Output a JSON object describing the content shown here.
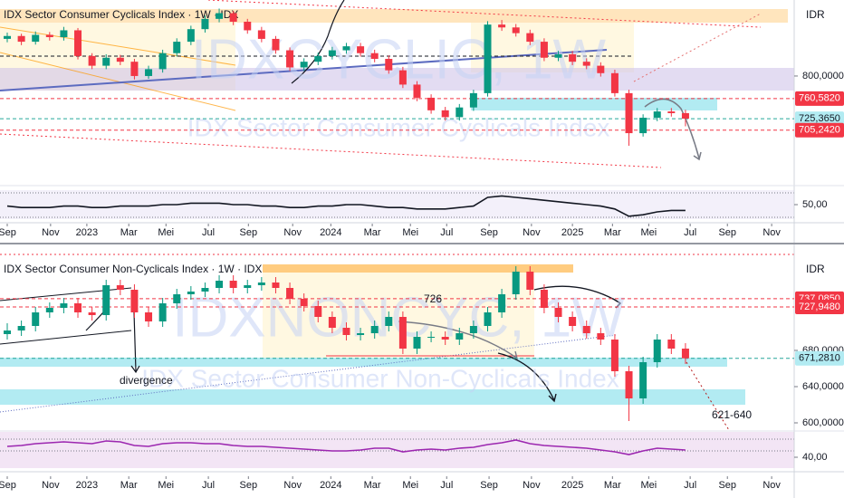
{
  "chart_data": [
    {
      "type": "candlestick",
      "title": "IDX Sector Consumer Cyclicals Index · 1W · IDX",
      "watermark": "IDXCYCLIC, 1W",
      "watermark_subtitle": "IDX Sector Consumer Cyclicals Index",
      "currency": "IDR",
      "up_color": "#089981",
      "down_color": "#f23645",
      "x": [
        0,
        3,
        6,
        9,
        12,
        15,
        18,
        21,
        24,
        27,
        30,
        33,
        36,
        39,
        42,
        45,
        48,
        51,
        54,
        57,
        60,
        63,
        66,
        69,
        72,
        75,
        78,
        81,
        84,
        87,
        90,
        93,
        96,
        99,
        102,
        105,
        108,
        111,
        114,
        117,
        120,
        123,
        126,
        129,
        132,
        135,
        138,
        141,
        144
      ],
      "ohlc": [
        [
          865,
          876,
          859,
          870
        ],
        [
          870,
          874,
          854,
          860
        ],
        [
          860,
          878,
          855,
          872
        ],
        [
          872,
          877,
          862,
          868
        ],
        [
          868,
          886,
          862,
          880
        ],
        [
          880,
          884,
          829,
          835
        ],
        [
          835,
          840,
          812,
          818
        ],
        [
          818,
          838,
          812,
          832
        ],
        [
          832,
          837,
          819,
          825
        ],
        [
          825,
          830,
          794,
          800
        ],
        [
          800,
          818,
          795,
          812
        ],
        [
          812,
          846,
          806,
          840
        ],
        [
          840,
          866,
          834,
          860
        ],
        [
          860,
          888,
          854,
          882
        ],
        [
          882,
          906,
          876,
          900
        ],
        [
          900,
          918,
          894,
          910
        ],
        [
          910,
          914,
          889,
          895
        ],
        [
          895,
          900,
          874,
          880
        ],
        [
          880,
          886,
          859,
          865
        ],
        [
          865,
          870,
          839,
          845
        ],
        [
          845,
          850,
          809,
          815
        ],
        [
          815,
          831,
          809,
          825
        ],
        [
          825,
          841,
          819,
          835
        ],
        [
          835,
          851,
          829,
          845
        ],
        [
          845,
          858,
          839,
          852
        ],
        [
          852,
          858,
          834,
          840
        ],
        [
          840,
          846,
          824,
          830
        ],
        [
          830,
          836,
          804,
          810
        ],
        [
          810,
          816,
          779,
          785
        ],
        [
          785,
          791,
          756,
          762
        ],
        [
          762,
          768,
          734,
          740
        ],
        [
          740,
          746,
          722,
          728
        ],
        [
          728,
          751,
          722,
          745
        ],
        [
          745,
          776,
          739,
          770
        ],
        [
          770,
          896,
          764,
          890
        ],
        [
          890,
          898,
          879,
          885
        ],
        [
          885,
          891,
          869,
          875
        ],
        [
          875,
          881,
          854,
          860
        ],
        [
          860,
          866,
          826,
          832
        ],
        [
          832,
          844,
          826,
          838
        ],
        [
          838,
          844,
          819,
          825
        ],
        [
          825,
          831,
          812,
          818
        ],
        [
          818,
          824,
          799,
          805
        ],
        [
          805,
          811,
          764,
          770
        ],
        [
          770,
          776,
          678,
          700
        ],
        [
          700,
          733,
          694,
          727
        ],
        [
          727,
          744,
          721,
          738
        ],
        [
          738,
          744,
          729,
          735
        ],
        [
          735,
          741,
          712,
          725.365
        ]
      ],
      "xlim": [
        -1.54,
        166.7
      ],
      "xticks": [
        {
          "value": 0,
          "label": "Sep"
        },
        {
          "value": 9.2,
          "label": "Nov"
        },
        {
          "value": 16.9,
          "label": "2023"
        },
        {
          "value": 25.8,
          "label": "Mar"
        },
        {
          "value": 33.7,
          "label": "Mei"
        },
        {
          "value": 42.7,
          "label": "Jul"
        },
        {
          "value": 51.2,
          "label": "Sep"
        },
        {
          "value": 60.6,
          "label": "Nov"
        },
        {
          "value": 68.7,
          "label": "2024"
        },
        {
          "value": 77.5,
          "label": "Mar"
        },
        {
          "value": 85.6,
          "label": "Mei"
        },
        {
          "value": 93.3,
          "label": "Jul"
        },
        {
          "value": 102.3,
          "label": "Sep"
        },
        {
          "value": 111.3,
          "label": "Nov"
        },
        {
          "value": 120,
          "label": "2025"
        },
        {
          "value": 128.5,
          "label": "Mar"
        },
        {
          "value": 136.2,
          "label": "Mei"
        },
        {
          "value": 145,
          "label": "Jul"
        },
        {
          "value": 152.9,
          "label": "Sep"
        },
        {
          "value": 162.3,
          "label": "Nov"
        }
      ],
      "ylim": [
        632,
        933
      ],
      "yticks": [
        {
          "value": 800,
          "label": "800,0000"
        }
      ],
      "price_lines": [
        {
          "value": 760.582,
          "label": "760,5820",
          "color": "#f23645",
          "text_color": "#ffffff"
        },
        {
          "value": 725.365,
          "label": "725,3650",
          "color": "#b2ebf2",
          "text_color": "#131722"
        },
        {
          "value": 705.242,
          "label": "705,2420",
          "color": "#f23645",
          "text_color": "#ffffff"
        }
      ],
      "indicator": {
        "ylim": [
          40,
          60
        ],
        "yticks": [
          {
            "value": 50,
            "label": "50,00"
          }
        ],
        "color": "#131722",
        "values": [
          49,
          48,
          48,
          48,
          49,
          49,
          48,
          48,
          49,
          49,
          49,
          50,
          50,
          51,
          51,
          51,
          50,
          50,
          49,
          49,
          48,
          48,
          49,
          49,
          50,
          50,
          49,
          48,
          48,
          47,
          47,
          47,
          48,
          49,
          55,
          56,
          55,
          54,
          53,
          52,
          51,
          50,
          49,
          47,
          42,
          43,
          45,
          46,
          46
        ]
      },
      "annotations": []
    },
    {
      "type": "candlestick",
      "title": "IDX Sector Consumer Non-Cyclicals Index · 1W · IDX",
      "watermark": "IDXNONCYC, 1W",
      "watermark_subtitle": "IDX Sector Consumer Non-Cyclicals Index",
      "currency": "IDR",
      "up_color": "#089981",
      "down_color": "#f23645",
      "x": [
        0,
        3,
        6,
        9,
        12,
        15,
        18,
        21,
        24,
        27,
        30,
        33,
        36,
        39,
        42,
        45,
        48,
        51,
        54,
        57,
        60,
        63,
        66,
        69,
        72,
        75,
        78,
        81,
        84,
        87,
        90,
        93,
        96,
        99,
        102,
        105,
        108,
        111,
        114,
        117,
        120,
        123,
        126,
        129,
        132,
        135,
        138,
        141,
        144
      ],
      "ohlc": [
        [
          698,
          710,
          692,
          702
        ],
        [
          702,
          713,
          696,
          707
        ],
        [
          707,
          728,
          701,
          722
        ],
        [
          722,
          733,
          716,
          727
        ],
        [
          727,
          738,
          721,
          732
        ],
        [
          732,
          738,
          716,
          722
        ],
        [
          722,
          728,
          713,
          719
        ],
        [
          719,
          758,
          713,
          752
        ],
        [
          752,
          758,
          741,
          747
        ],
        [
          747,
          753,
          716,
          722
        ],
        [
          722,
          728,
          706,
          712
        ],
        [
          712,
          738,
          706,
          732
        ],
        [
          732,
          748,
          726,
          742
        ],
        [
          742,
          751,
          736,
          745
        ],
        [
          745,
          755,
          739,
          749
        ],
        [
          749,
          763,
          743,
          757
        ],
        [
          757,
          763,
          743,
          749
        ],
        [
          749,
          758,
          743,
          752
        ],
        [
          752,
          761,
          746,
          755
        ],
        [
          755,
          761,
          743,
          749
        ],
        [
          749,
          755,
          731,
          737
        ],
        [
          737,
          743,
          723,
          729
        ],
        [
          729,
          735,
          711,
          717
        ],
        [
          717,
          723,
          699,
          705
        ],
        [
          705,
          711,
          691,
          697
        ],
        [
          697,
          705,
          691,
          699
        ],
        [
          699,
          713,
          693,
          707
        ],
        [
          707,
          723,
          701,
          717
        ],
        [
          717,
          723,
          676,
          682
        ],
        [
          682,
          701,
          676,
          695
        ],
        [
          695,
          701,
          689,
          695
        ],
        [
          695,
          701,
          686,
          692
        ],
        [
          692,
          705,
          686,
          699
        ],
        [
          699,
          713,
          693,
          707
        ],
        [
          707,
          728,
          701,
          722
        ],
        [
          722,
          748,
          716,
          742
        ],
        [
          742,
          773,
          736,
          767
        ],
        [
          767,
          773,
          741,
          747
        ],
        [
          747,
          753,
          721,
          727
        ],
        [
          727,
          733,
          711,
          717
        ],
        [
          717,
          723,
          701,
          707
        ],
        [
          707,
          713,
          693,
          699
        ],
        [
          699,
          705,
          686,
          692
        ],
        [
          692,
          698,
          651,
          657
        ],
        [
          657,
          663,
          602,
          627
        ],
        [
          627,
          673,
          621,
          667
        ],
        [
          667,
          698,
          661,
          692
        ],
        [
          692,
          698,
          676,
          682
        ],
        [
          682,
          688,
          665,
          671.281
        ]
      ],
      "xlim": [
        -1.54,
        166.7
      ],
      "xticks": [
        {
          "value": 0,
          "label": "Sep"
        },
        {
          "value": 9.2,
          "label": "Nov"
        },
        {
          "value": 16.9,
          "label": "2023"
        },
        {
          "value": 25.8,
          "label": "Mar"
        },
        {
          "value": 33.7,
          "label": "Mei"
        },
        {
          "value": 42.7,
          "label": "Jul"
        },
        {
          "value": 51.2,
          "label": "Sep"
        },
        {
          "value": 60.6,
          "label": "Nov"
        },
        {
          "value": 68.7,
          "label": "2024"
        },
        {
          "value": 77.5,
          "label": "Mar"
        },
        {
          "value": 85.6,
          "label": "Mei"
        },
        {
          "value": 93.3,
          "label": "Jul"
        },
        {
          "value": 102.3,
          "label": "Sep"
        },
        {
          "value": 111.3,
          "label": "Nov"
        },
        {
          "value": 120,
          "label": "2025"
        },
        {
          "value": 128.5,
          "label": "Mar"
        },
        {
          "value": 136.2,
          "label": "Mei"
        },
        {
          "value": 145,
          "label": "Jul"
        },
        {
          "value": 152.9,
          "label": "Sep"
        },
        {
          "value": 162.3,
          "label": "Nov"
        }
      ],
      "ylim": [
        592,
        795
      ],
      "yticks": [
        {
          "value": 600,
          "label": "600,0000"
        },
        {
          "value": 640,
          "label": "640,0000"
        },
        {
          "value": 680,
          "label": "680,0000"
        }
      ],
      "price_lines": [
        {
          "value": 737.085,
          "label": "737,0850",
          "color": "#f23645",
          "text_color": "#ffffff"
        },
        {
          "value": 727.948,
          "label": "727,9480",
          "color": "#f23645",
          "text_color": "#ffffff"
        },
        {
          "value": 671.281,
          "label": "671,2810",
          "color": "#b2ebf2",
          "text_color": "#131722"
        }
      ],
      "indicator": {
        "ylim": [
          28,
          68
        ],
        "yticks": [
          {
            "value": 40,
            "label": "40,00"
          }
        ],
        "color": "#9c27b0",
        "values": [
          52,
          53,
          55,
          56,
          57,
          56,
          55,
          58,
          57,
          53,
          52,
          55,
          56,
          56,
          55,
          55,
          53,
          52,
          52,
          51,
          50,
          49,
          48,
          47,
          47,
          48,
          50,
          50,
          46,
          48,
          49,
          48,
          50,
          51,
          54,
          56,
          59,
          55,
          53,
          52,
          51,
          50,
          48,
          46,
          43,
          47,
          50,
          49,
          48
        ]
      },
      "annotations": [
        "726",
        "divergence",
        "621-640"
      ]
    }
  ]
}
